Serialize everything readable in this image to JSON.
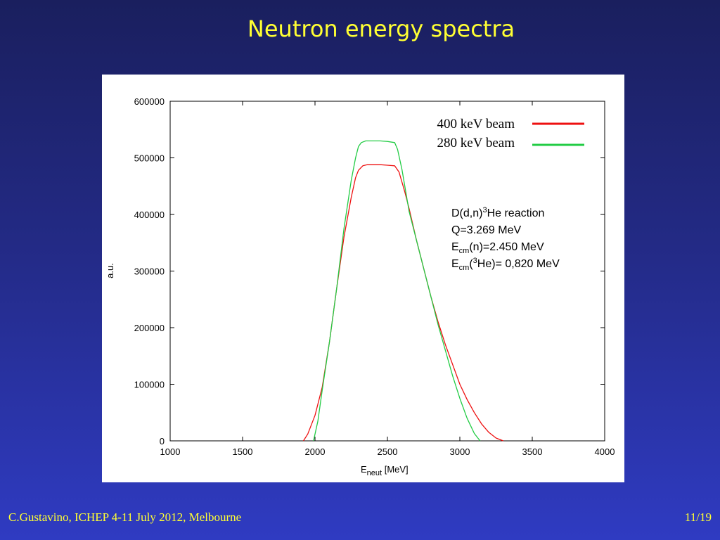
{
  "slide": {
    "title": "Neutron energy spectra",
    "footer_left": "C.Gustavino, ICHEP 4-11 July 2012, Melbourne",
    "footer_right": "11/19"
  },
  "colors": {
    "series_400": "#ee1111",
    "series_280": "#22cc44",
    "title": "#ffff33"
  },
  "chart_data": {
    "type": "line",
    "title": "",
    "xlabel": {
      "main": "E",
      "sub": "neut",
      "rest": " [MeV]"
    },
    "ylabel": "a.u.",
    "xlim": [
      1000,
      4000
    ],
    "ylim": [
      0,
      600000
    ],
    "xticks": [
      1000,
      1500,
      2000,
      2500,
      3000,
      3500,
      4000
    ],
    "yticks": [
      0,
      100000,
      200000,
      300000,
      400000,
      500000,
      600000
    ],
    "grid": false,
    "legend_position": "top-right",
    "series": [
      {
        "name": "400 keV beam",
        "color": "#ee1111",
        "x": [
          1920,
          1950,
          2000,
          2050,
          2100,
          2150,
          2200,
          2250,
          2280,
          2300,
          2330,
          2360,
          2400,
          2450,
          2500,
          2550,
          2580,
          2620,
          2650,
          2700,
          2750,
          2800,
          2850,
          2900,
          2950,
          3000,
          3050,
          3100,
          3150,
          3200,
          3250,
          3300
        ],
        "y": [
          0,
          12000,
          45000,
          95000,
          175000,
          270000,
          360000,
          430000,
          465000,
          478000,
          486000,
          488000,
          488000,
          488000,
          487000,
          486000,
          475000,
          440000,
          410000,
          355000,
          305000,
          255000,
          210000,
          170000,
          135000,
          100000,
          73000,
          50000,
          30000,
          15000,
          5000,
          0
        ]
      },
      {
        "name": "280 keV beam",
        "color": "#22cc44",
        "x": [
          1990,
          2020,
          2050,
          2100,
          2150,
          2200,
          2250,
          2280,
          2300,
          2320,
          2350,
          2400,
          2450,
          2500,
          2550,
          2570,
          2600,
          2650,
          2700,
          2750,
          2800,
          2850,
          2900,
          2950,
          3000,
          3050,
          3100,
          3140
        ],
        "y": [
          0,
          35000,
          90000,
          175000,
          270000,
          375000,
          460000,
          500000,
          520000,
          527000,
          530000,
          530000,
          530000,
          529000,
          527000,
          515000,
          480000,
          405000,
          355000,
          305000,
          255000,
          205000,
          160000,
          115000,
          75000,
          40000,
          13000,
          0
        ]
      }
    ],
    "annotations": {
      "line1": {
        "a": "D(d,n)",
        "sup": "3",
        "b": "He reaction"
      },
      "line2": "Q=3.269 MeV",
      "line3": {
        "a": "E",
        "sub": "cm",
        "b": "(n)=2.450 MeV"
      },
      "line4": {
        "a": "E",
        "sub": "cm",
        "b": "(",
        "sup": "3",
        "c": "He)= 0,820 MeV"
      }
    }
  }
}
